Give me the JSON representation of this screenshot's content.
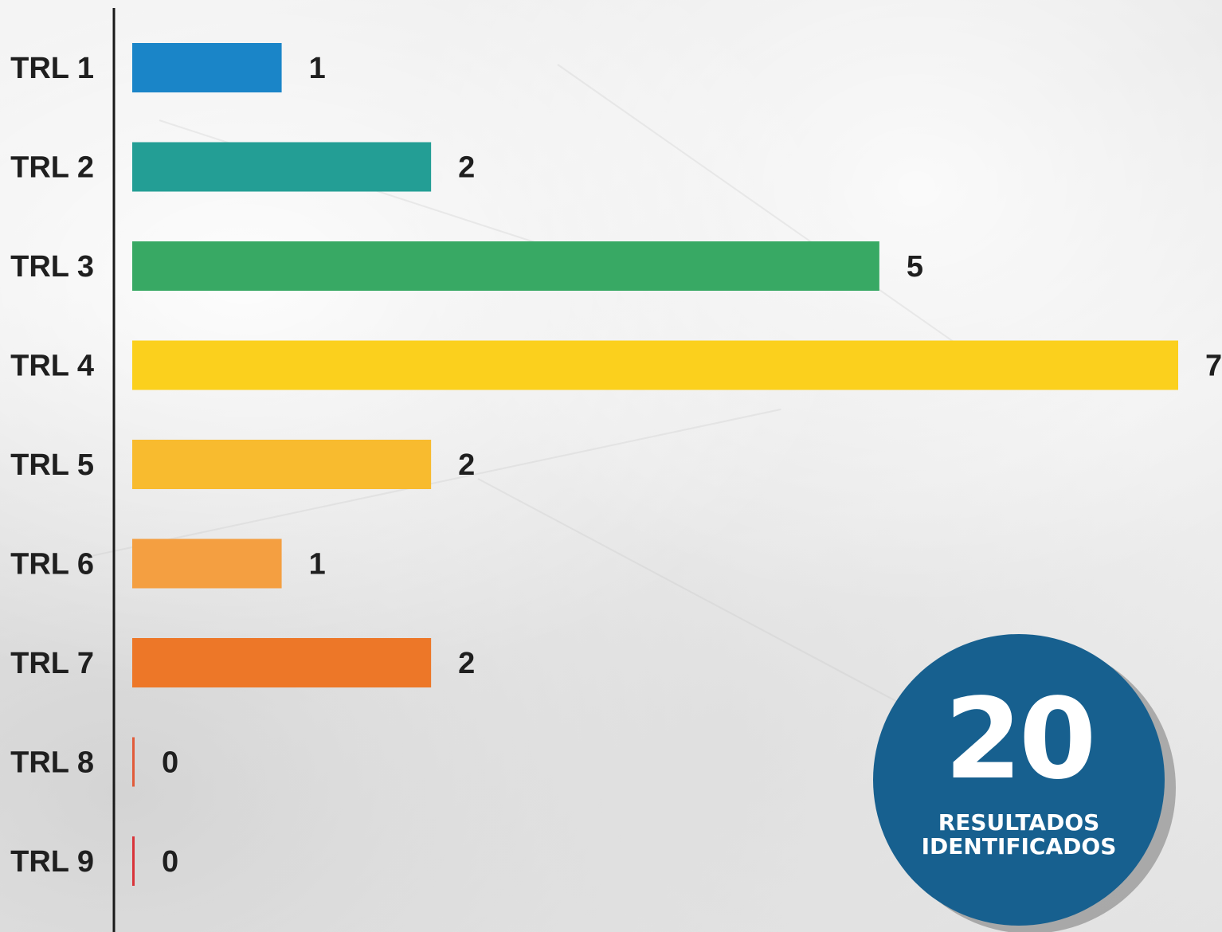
{
  "chart_data": {
    "type": "bar",
    "orientation": "horizontal",
    "categories": [
      "TRL 1",
      "TRL 2",
      "TRL 3",
      "TRL 4",
      "TRL 5",
      "TRL 6",
      "TRL 7",
      "TRL 8",
      "TRL 9"
    ],
    "values": [
      1,
      2,
      5,
      7,
      2,
      1,
      2,
      0,
      0
    ],
    "colors": [
      "#1a85c8",
      "#239e95",
      "#38a964",
      "#fbd01d",
      "#f8bb2f",
      "#f49f41",
      "#ed7728",
      "#e15b3a",
      "#d9343a"
    ],
    "xlim": [
      0,
      7
    ],
    "grid": false,
    "legend": "none",
    "title": "",
    "xlabel": "",
    "ylabel": ""
  },
  "badge": {
    "number": "20",
    "caption_line1": "RESULTADOS",
    "caption_line2": "IDENTIFICADOS",
    "color": "#17608f"
  }
}
